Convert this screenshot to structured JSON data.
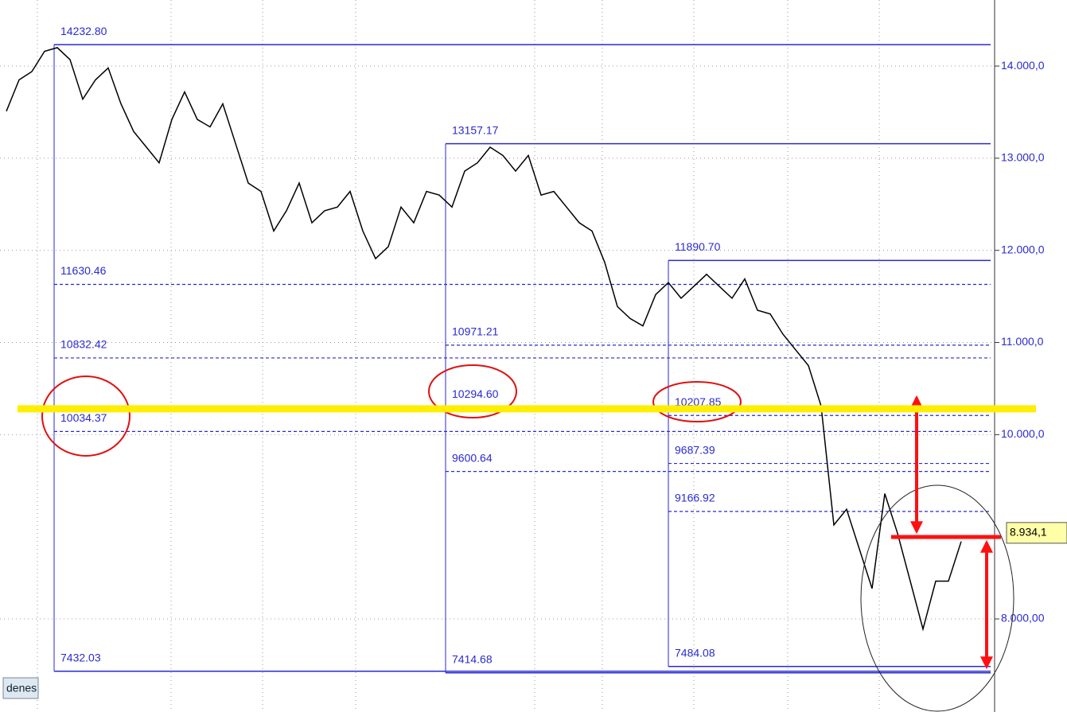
{
  "chart_data": {
    "type": "line",
    "values": [
      13510,
      13850,
      13940,
      14160,
      14200,
      14070,
      13640,
      13850,
      13980,
      13590,
      13290,
      13120,
      12950,
      13420,
      13720,
      13420,
      13340,
      13590,
      13160,
      12730,
      12640,
      12210,
      12430,
      12730,
      12300,
      12430,
      12470,
      12640,
      12210,
      11910,
      12040,
      12470,
      12300,
      12640,
      12600,
      12470,
      12860,
      12950,
      13120,
      13030,
      12860,
      13030,
      12600,
      12640,
      12470,
      12300,
      12210,
      11870,
      11390,
      11260,
      11180,
      11520,
      11650,
      11480,
      11610,
      11740,
      11610,
      11480,
      11690,
      11350,
      11310,
      11090,
      10920,
      10750,
      10310,
      9020,
      9190,
      8760,
      8330,
      9360,
      8930,
      8410,
      7890,
      8410,
      8410,
      8840
    ],
    "color": "#000000",
    "ylim": [
      6990,
      14717
    ],
    "yticks": [
      {
        "value": 8000,
        "label": "8.000,00"
      },
      {
        "value": 10000,
        "label": "10.000,0"
      },
      {
        "value": 11000,
        "label": "11.000,0"
      },
      {
        "value": 12000,
        "label": "12.000,0"
      },
      {
        "value": 13000,
        "label": "13.000,0"
      },
      {
        "value": 14000,
        "label": "14.000,0"
      }
    ],
    "grid": true,
    "fibonacci": [
      {
        "lines": [
          {
            "value": 14232.8,
            "label": "14232.80"
          },
          11630.46,
          10832.42,
          10034.37,
          7432.03
        ]
      },
      {
        "lines": [
          13157.17,
          10971.21,
          {
            "value": 10294.6,
            "label": "10294.60"
          },
          9600.64,
          7414.68
        ]
      },
      {
        "lines": [
          {
            "value": 11890.7,
            "label": "11890.70"
          },
          10207.85,
          9687.39,
          9166.92,
          7484.08
        ]
      }
    ],
    "horizontal_line": {
      "value": 10280,
      "color": "#ffee00"
    },
    "last_price": {
      "value": 8934,
      "label": "8.934,1"
    },
    "footer": "denes"
  }
}
